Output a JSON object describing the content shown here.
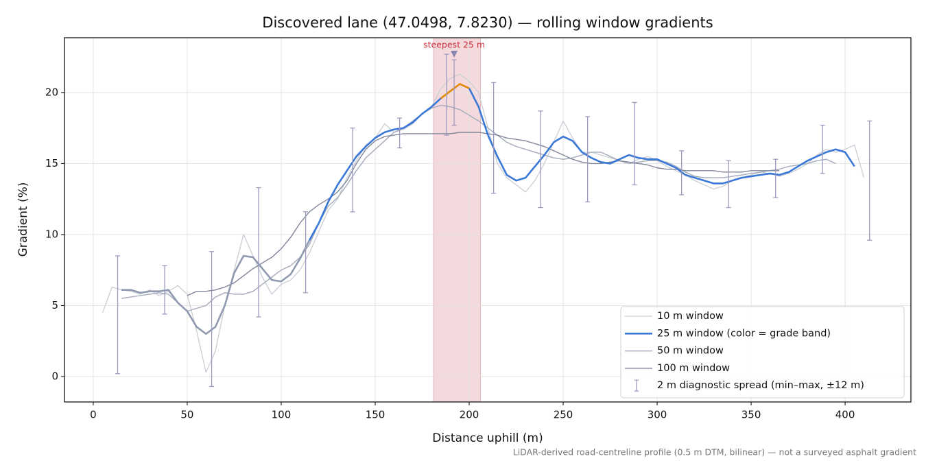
{
  "chart_data": {
    "type": "line",
    "title": "Discovered lane (47.0498, 7.8230) — rolling window gradients",
    "xlabel": "Distance uphill (m)",
    "ylabel": "Gradient (%)",
    "footnote": "LiDAR-derived road-centreline profile (0.5 m DTM, bilinear) — not a surveyed asphalt gradient",
    "x": [
      5,
      10,
      15,
      20,
      25,
      30,
      35,
      40,
      45,
      50,
      55,
      60,
      65,
      70,
      75,
      80,
      85,
      90,
      95,
      100,
      105,
      110,
      115,
      120,
      125,
      130,
      135,
      140,
      145,
      150,
      155,
      160,
      165,
      170,
      175,
      180,
      185,
      190,
      195,
      200,
      205,
      210,
      215,
      220,
      225,
      230,
      235,
      240,
      245,
      250,
      255,
      260,
      265,
      270,
      275,
      280,
      285,
      290,
      295,
      300,
      305,
      310,
      315,
      320,
      325,
      330,
      335,
      340,
      345,
      350,
      355,
      360,
      365,
      370,
      375,
      380,
      385,
      390,
      395,
      400,
      405,
      410
    ],
    "series": [
      {
        "name": "10 m window",
        "color": "#c9cdd5",
        "width": 1.3,
        "values": [
          4.5,
          6.3,
          6.1,
          6.0,
          5.8,
          6.1,
          5.7,
          6.0,
          6.4,
          5.8,
          3.2,
          0.3,
          1.8,
          5.0,
          7.5,
          10.0,
          8.5,
          7.0,
          5.8,
          6.5,
          6.8,
          7.5,
          8.7,
          10.2,
          11.7,
          12.5,
          14.0,
          15.2,
          16.3,
          16.8,
          17.8,
          17.2,
          17.4,
          17.8,
          18.5,
          19.0,
          20.3,
          21.0,
          21.3,
          20.8,
          20.0,
          17.5,
          15.0,
          14.0,
          13.5,
          13.0,
          13.8,
          15.0,
          16.5,
          18.0,
          16.8,
          15.8,
          15.8,
          15.6,
          15.4,
          15.2,
          15.0,
          15.3,
          15.5,
          15.2,
          14.8,
          14.5,
          14.2,
          13.8,
          13.5,
          13.2,
          13.4,
          13.8,
          14.0,
          14.2,
          14.4,
          14.3,
          14.1,
          14.3,
          14.6,
          15.0,
          15.6,
          16.0,
          15.8,
          16.0,
          16.3,
          14.0
        ]
      },
      {
        "name": "25 m window (color = grade band)",
        "color": "#3a78d8",
        "width": 2.6,
        "grade_bands": {
          "thresholds": [
            10,
            20
          ],
          "colors": [
            "#8f9ab0",
            "#3a78d8",
            "#e08a00"
          ]
        },
        "values": [
          null,
          null,
          6.1,
          6.1,
          5.9,
          6.0,
          6.0,
          6.1,
          5.2,
          4.6,
          3.5,
          3.0,
          3.5,
          5.0,
          7.3,
          8.5,
          8.4,
          7.6,
          6.8,
          6.7,
          7.2,
          8.3,
          9.6,
          10.8,
          12.3,
          13.5,
          14.5,
          15.5,
          16.2,
          16.8,
          17.2,
          17.4,
          17.5,
          17.9,
          18.5,
          19.0,
          19.6,
          20.1,
          20.6,
          20.3,
          19.0,
          17.0,
          15.5,
          14.2,
          13.8,
          14.0,
          14.8,
          15.6,
          16.5,
          16.9,
          16.6,
          15.8,
          15.4,
          15.1,
          15.0,
          15.3,
          15.6,
          15.4,
          15.3,
          15.3,
          15.0,
          14.7,
          14.2,
          14.0,
          13.8,
          13.6,
          13.6,
          13.8,
          14.0,
          14.1,
          14.2,
          14.3,
          14.2,
          14.4,
          14.8,
          15.2,
          15.5,
          15.8,
          16.0,
          15.8,
          14.8,
          null
        ]
      },
      {
        "name": "50 m window",
        "color": "#a7aebd",
        "width": 1.5,
        "values": [
          null,
          null,
          5.5,
          5.6,
          5.7,
          5.8,
          5.9,
          5.8,
          5.2,
          4.6,
          4.8,
          5.0,
          5.6,
          5.9,
          5.8,
          5.8,
          6.0,
          6.5,
          7.0,
          7.5,
          7.8,
          8.4,
          9.3,
          10.8,
          12.0,
          12.6,
          13.5,
          14.5,
          15.4,
          16.0,
          16.6,
          17.2,
          17.5,
          18.0,
          18.5,
          18.9,
          19.1,
          19.0,
          18.8,
          18.4,
          18.0,
          17.5,
          17.0,
          16.5,
          16.2,
          16.0,
          15.8,
          15.6,
          15.4,
          15.3,
          15.4,
          15.6,
          15.8,
          15.8,
          15.5,
          15.2,
          15.0,
          15.1,
          15.2,
          15.2,
          15.1,
          14.8,
          14.4,
          14.1,
          14.0,
          14.0,
          14.0,
          14.1,
          14.2,
          14.3,
          14.4,
          14.5,
          14.6,
          14.8,
          14.9,
          15.0,
          15.2,
          15.3,
          15.0,
          null,
          null,
          null
        ]
      },
      {
        "name": "100 m window",
        "color": "#80869a",
        "width": 1.4,
        "values": [
          null,
          null,
          null,
          null,
          null,
          null,
          null,
          null,
          null,
          5.7,
          6.0,
          6.0,
          6.1,
          6.3,
          6.6,
          7.1,
          7.6,
          8.0,
          8.4,
          9.0,
          9.8,
          10.8,
          11.6,
          12.1,
          12.5,
          13.0,
          13.8,
          15.0,
          16.0,
          16.6,
          16.9,
          17.0,
          17.1,
          17.1,
          17.1,
          17.1,
          17.1,
          17.1,
          17.2,
          17.2,
          17.2,
          17.1,
          17.0,
          16.8,
          16.7,
          16.6,
          16.4,
          16.2,
          15.9,
          15.6,
          15.3,
          15.1,
          15.0,
          15.0,
          15.1,
          15.2,
          15.1,
          15.0,
          14.9,
          14.7,
          14.6,
          14.6,
          14.5,
          14.5,
          14.5,
          14.5,
          14.4,
          14.4,
          14.4,
          14.5,
          14.5,
          14.5,
          14.5,
          null,
          null,
          null,
          null,
          null,
          null,
          null,
          null,
          null
        ]
      }
    ],
    "error_bars": {
      "name": "2 m diagnostic spread (min–max, ±12 m)",
      "color": "#9c9abf",
      "x": [
        13,
        38,
        63,
        88,
        113,
        138,
        163,
        188,
        192,
        213,
        238,
        263,
        288,
        313,
        338,
        363,
        388,
        413
      ],
      "min": [
        0.2,
        4.4,
        -0.7,
        4.2,
        5.9,
        11.6,
        16.1,
        17.0,
        17.7,
        12.9,
        11.9,
        12.3,
        13.5,
        12.8,
        11.9,
        12.6,
        14.3,
        9.6
      ],
      "max": [
        8.5,
        7.8,
        8.8,
        13.3,
        11.6,
        17.5,
        18.2,
        22.7,
        22.3,
        20.7,
        18.7,
        18.3,
        19.3,
        15.9,
        15.2,
        15.3,
        17.7,
        18.0
      ]
    },
    "highlight": {
      "xmin": 181,
      "xmax": 206,
      "color": "#f5dadd",
      "label": "steepest 25 m",
      "label_color": "#c8303c",
      "marker_x": 192,
      "marker_y": 22.7,
      "marker_color": "#8a86ad"
    },
    "xlim": [
      -15.3,
      435
    ],
    "ylim": [
      -1.79,
      23.86
    ],
    "xticks": [
      0,
      50,
      100,
      150,
      200,
      250,
      300,
      350,
      400
    ],
    "yticks": [
      0,
      5,
      10,
      15,
      20
    ],
    "grid": true,
    "legend": "lower right"
  }
}
